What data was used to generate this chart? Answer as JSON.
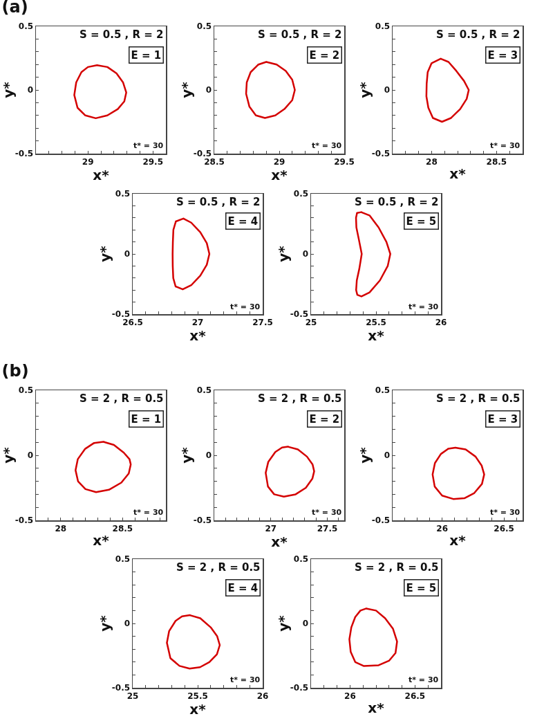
{
  "chart_data": [
    {
      "type": "line",
      "title": "(a)",
      "xlabel": "x*",
      "ylabel": "y*",
      "annotations": [
        "S = 0.5 , R = 2",
        "E = 1",
        "t* = 30"
      ],
      "xlim": [
        28.6,
        29.6
      ],
      "xticks": [
        {
          "value": 28.7,
          "label": null
        },
        {
          "value": 28.8,
          "label": null
        },
        {
          "value": 28.9,
          "label": null
        },
        29,
        {
          "value": 29.1,
          "label": null
        },
        {
          "value": 29.2,
          "label": null
        },
        {
          "value": 29.3,
          "label": null
        },
        {
          "value": 29.4,
          "label": null
        },
        29.5
      ],
      "ylim": [
        -0.5,
        0.5
      ],
      "yticks": [
        -0.5,
        {
          "value": -0.4,
          "label": null
        },
        {
          "value": -0.3,
          "label": null
        },
        {
          "value": -0.2,
          "label": null
        },
        {
          "value": -0.1,
          "label": null
        },
        0,
        {
          "value": 0.1,
          "label": null
        },
        {
          "value": 0.2,
          "label": null
        },
        {
          "value": 0.3,
          "label": null
        },
        {
          "value": 0.4,
          "label": null
        },
        0.5
      ],
      "series": [
        {
          "color": "#d40000",
          "x": [
            29.07,
            29.15,
            29.22,
            29.27,
            29.295,
            29.28,
            29.23,
            29.15,
            29.06,
            28.98,
            28.92,
            28.895,
            28.91,
            28.95,
            29.0
          ],
          "values": [
            0.194,
            0.18,
            0.13,
            0.06,
            -0.02,
            -0.09,
            -0.15,
            -0.2,
            -0.222,
            -0.2,
            -0.14,
            -0.04,
            0.06,
            0.14,
            0.18
          ]
        }
      ]
    },
    {
      "type": "line",
      "xlabel": "x*",
      "ylabel": "y*",
      "annotations": [
        "S = 0.5 , R = 2",
        "E = 2",
        "t* = 30"
      ],
      "xlim": [
        28.5,
        29.5
      ],
      "xticks": [
        28.5,
        {
          "value": 28.6,
          "label": null
        },
        {
          "value": 28.7,
          "label": null
        },
        {
          "value": 28.8,
          "label": null
        },
        {
          "value": 28.9,
          "label": null
        },
        29,
        {
          "value": 29.1,
          "label": null
        },
        {
          "value": 29.2,
          "label": null
        },
        {
          "value": 29.3,
          "label": null
        },
        {
          "value": 29.4,
          "label": null
        },
        29.5
      ],
      "ylim": [
        -0.5,
        0.5
      ],
      "yticks": [
        -0.5,
        {
          "value": -0.4,
          "label": null
        },
        {
          "value": -0.3,
          "label": null
        },
        {
          "value": -0.2,
          "label": null
        },
        {
          "value": -0.1,
          "label": null
        },
        0,
        {
          "value": 0.1,
          "label": null
        },
        {
          "value": 0.2,
          "label": null
        },
        {
          "value": 0.3,
          "label": null
        },
        {
          "value": 0.4,
          "label": null
        },
        0.5
      ],
      "series": [
        {
          "color": "#d40000",
          "x": [
            28.9,
            28.98,
            29.05,
            29.1,
            29.12,
            29.1,
            29.04,
            28.97,
            28.89,
            28.82,
            28.77,
            28.745,
            28.75,
            28.78,
            28.84
          ],
          "values": [
            0.22,
            0.2,
            0.15,
            0.08,
            0,
            -0.08,
            -0.15,
            -0.2,
            -0.22,
            -0.2,
            -0.13,
            -0.03,
            0.06,
            0.14,
            0.2
          ]
        }
      ]
    },
    {
      "type": "line",
      "xlabel": "x*",
      "ylabel": "y*",
      "annotations": [
        "S = 0.5 , R = 2",
        "E = 3",
        "t* = 30"
      ],
      "xlim": [
        27.7,
        28.7
      ],
      "xticks": [
        {
          "value": 27.8,
          "label": null
        },
        {
          "value": 27.9,
          "label": null
        },
        28,
        {
          "value": 28.1,
          "label": null
        },
        {
          "value": 28.2,
          "label": null
        },
        {
          "value": 28.3,
          "label": null
        },
        {
          "value": 28.4,
          "label": null
        },
        28.5,
        {
          "value": 28.6,
          "label": null
        }
      ],
      "ylim": [
        -0.5,
        0.5
      ],
      "yticks": [
        -0.5,
        {
          "value": -0.4,
          "label": null
        },
        {
          "value": -0.3,
          "label": null
        },
        {
          "value": -0.2,
          "label": null
        },
        {
          "value": -0.1,
          "label": null
        },
        0,
        {
          "value": 0.1,
          "label": null
        },
        {
          "value": 0.2,
          "label": null
        },
        {
          "value": 0.3,
          "label": null
        },
        {
          "value": 0.4,
          "label": null
        },
        0.5
      ],
      "series": [
        {
          "color": "#d40000",
          "x": [
            28.07,
            28.13,
            28.19,
            28.25,
            28.286,
            28.27,
            28.22,
            28.15,
            28.08,
            28.01,
            27.975,
            27.96,
            27.962,
            27.97,
            28.0
          ],
          "values": [
            0.245,
            0.22,
            0.15,
            0.07,
            0,
            -0.07,
            -0.15,
            -0.22,
            -0.25,
            -0.22,
            -0.14,
            -0.05,
            0.05,
            0.14,
            0.21
          ]
        }
      ]
    },
    {
      "type": "line",
      "xlabel": "x*",
      "ylabel": "y*",
      "annotations": [
        "S = 0.5 , R = 2",
        "E = 4",
        "t* = 30"
      ],
      "xlim": [
        26.5,
        27.5
      ],
      "xticks": [
        26.5,
        {
          "value": 26.6,
          "label": null
        },
        {
          "value": 26.7,
          "label": null
        },
        {
          "value": 26.8,
          "label": null
        },
        {
          "value": 26.9,
          "label": null
        },
        27,
        {
          "value": 27.1,
          "label": null
        },
        {
          "value": 27.2,
          "label": null
        },
        {
          "value": 27.3,
          "label": null
        },
        {
          "value": 27.4,
          "label": null
        },
        27.5
      ],
      "ylim": [
        -0.5,
        0.5
      ],
      "yticks": [
        -0.5,
        {
          "value": -0.4,
          "label": null
        },
        {
          "value": -0.3,
          "label": null
        },
        {
          "value": -0.2,
          "label": null
        },
        {
          "value": -0.1,
          "label": null
        },
        0,
        {
          "value": 0.1,
          "label": null
        },
        {
          "value": 0.2,
          "label": null
        },
        {
          "value": 0.3,
          "label": null
        },
        {
          "value": 0.4,
          "label": null
        },
        0.5
      ],
      "series": [
        {
          "color": "#d40000",
          "x": [
            26.89,
            26.95,
            27.02,
            27.07,
            27.09,
            27.07,
            27.02,
            26.95,
            26.885,
            26.83,
            26.812,
            26.808,
            26.807,
            26.809,
            26.813,
            26.832
          ],
          "values": [
            0.294,
            0.26,
            0.18,
            0.09,
            0,
            -0.09,
            -0.18,
            -0.26,
            -0.294,
            -0.27,
            -0.2,
            -0.1,
            0,
            0.1,
            0.2,
            0.27
          ]
        }
      ]
    },
    {
      "type": "line",
      "xlabel": "x*",
      "ylabel": "y*",
      "annotations": [
        "S = 0.5 , R = 2",
        "E = 5",
        "t* = 30"
      ],
      "xlim": [
        25,
        26
      ],
      "xticks": [
        25,
        {
          "value": 25.1,
          "label": null
        },
        {
          "value": 25.2,
          "label": null
        },
        {
          "value": 25.3,
          "label": null
        },
        {
          "value": 25.4,
          "label": null
        },
        25.5,
        {
          "value": 25.6,
          "label": null
        },
        {
          "value": 25.7,
          "label": null
        },
        {
          "value": 25.8,
          "label": null
        },
        {
          "value": 25.9,
          "label": null
        },
        26
      ],
      "ylim": [
        -0.5,
        0.5
      ],
      "yticks": [
        -0.5,
        {
          "value": -0.4,
          "label": null
        },
        {
          "value": -0.3,
          "label": null
        },
        {
          "value": -0.2,
          "label": null
        },
        {
          "value": -0.1,
          "label": null
        },
        0,
        {
          "value": 0.1,
          "label": null
        },
        {
          "value": 0.2,
          "label": null
        },
        {
          "value": 0.3,
          "label": null
        },
        {
          "value": 0.4,
          "label": null
        },
        0.5
      ],
      "series": [
        {
          "color": "#d40000",
          "x": [
            25.386,
            25.45,
            25.52,
            25.58,
            25.61,
            25.59,
            25.53,
            25.45,
            25.388,
            25.356,
            25.347,
            25.352,
            25.372,
            25.39,
            25.368,
            25.349,
            25.346,
            25.354
          ],
          "values": [
            0.347,
            0.32,
            0.22,
            0.1,
            0,
            -0.1,
            -0.22,
            -0.32,
            -0.353,
            -0.34,
            -0.3,
            -0.22,
            -0.12,
            0,
            0.12,
            0.22,
            0.3,
            0.34
          ]
        }
      ]
    },
    {
      "type": "line",
      "title": "(b)",
      "xlabel": "x*",
      "ylabel": "y*",
      "annotations": [
        "S = 2 , R = 0.5",
        "E = 1",
        "t* = 30"
      ],
      "xlim": [
        27.8,
        28.85
      ],
      "xticks": [
        {
          "value": 27.9,
          "label": null
        },
        28,
        {
          "value": 28.1,
          "label": null
        },
        {
          "value": 28.2,
          "label": null
        },
        {
          "value": 28.3,
          "label": null
        },
        {
          "value": 28.4,
          "label": null
        },
        28.5,
        {
          "value": 28.6,
          "label": null
        },
        {
          "value": 28.7,
          "label": null
        },
        {
          "value": 28.8,
          "label": null
        }
      ],
      "ylim": [
        -0.5,
        0.5
      ],
      "yticks": [
        -0.5,
        {
          "value": -0.4,
          "label": null
        },
        {
          "value": -0.3,
          "label": null
        },
        {
          "value": -0.2,
          "label": null
        },
        {
          "value": -0.1,
          "label": null
        },
        0,
        {
          "value": 0.1,
          "label": null
        },
        {
          "value": 0.2,
          "label": null
        },
        {
          "value": 0.3,
          "label": null
        },
        {
          "value": 0.4,
          "label": null
        },
        0.5
      ],
      "series": [
        {
          "color": "#d40000",
          "x": [
            28.345,
            28.43,
            28.51,
            28.556,
            28.566,
            28.55,
            28.49,
            28.39,
            28.286,
            28.2,
            28.14,
            28.12,
            28.138,
            28.198,
            28.27
          ],
          "values": [
            0.104,
            0.08,
            0.02,
            -0.03,
            -0.07,
            -0.14,
            -0.21,
            -0.265,
            -0.283,
            -0.26,
            -0.2,
            -0.115,
            -0.03,
            0.05,
            0.095
          ]
        }
      ]
    },
    {
      "type": "line",
      "xlabel": "x*",
      "ylabel": "y*",
      "annotations": [
        "S = 2 , R = 0.5",
        "E = 2",
        "t* = 30"
      ],
      "xlim": [
        26.5,
        27.65
      ],
      "xticks": [
        {
          "value": 26.6,
          "label": null
        },
        {
          "value": 26.7,
          "label": null
        },
        {
          "value": 26.8,
          "label": null
        },
        {
          "value": 26.9,
          "label": null
        },
        27,
        {
          "value": 27.1,
          "label": null
        },
        {
          "value": 27.2,
          "label": null
        },
        {
          "value": 27.3,
          "label": null
        },
        {
          "value": 27.4,
          "label": null
        },
        27.5,
        {
          "value": 27.6,
          "label": null
        }
      ],
      "ylim": [
        -0.5,
        0.5
      ],
      "yticks": [
        -0.5,
        {
          "value": -0.4,
          "label": null
        },
        {
          "value": -0.3,
          "label": null
        },
        {
          "value": -0.2,
          "label": null
        },
        {
          "value": -0.1,
          "label": null
        },
        0,
        {
          "value": 0.1,
          "label": null
        },
        {
          "value": 0.2,
          "label": null
        },
        {
          "value": 0.3,
          "label": null
        },
        {
          "value": 0.4,
          "label": null
        },
        0.5
      ],
      "series": [
        {
          "color": "#d40000",
          "x": [
            27.152,
            27.24,
            27.32,
            27.37,
            27.384,
            27.368,
            27.31,
            27.22,
            27.116,
            27.03,
            26.975,
            26.955,
            26.978,
            27.04,
            27.1
          ],
          "values": [
            0.066,
            0.045,
            -0.01,
            -0.07,
            -0.123,
            -0.18,
            -0.25,
            -0.3,
            -0.318,
            -0.3,
            -0.24,
            -0.135,
            -0.05,
            0.025,
            0.06
          ]
        }
      ]
    },
    {
      "type": "line",
      "xlabel": "x*",
      "ylabel": "y*",
      "annotations": [
        "S = 2 , R = 0.5",
        "E = 3",
        "t* = 30"
      ],
      "xlim": [
        25.6,
        26.65
      ],
      "xticks": [
        {
          "value": 25.7,
          "label": null
        },
        {
          "value": 25.8,
          "label": null
        },
        {
          "value": 25.9,
          "label": null
        },
        26,
        {
          "value": 26.1,
          "label": null
        },
        {
          "value": 26.2,
          "label": null
        },
        {
          "value": 26.3,
          "label": null
        },
        {
          "value": 26.4,
          "label": null
        },
        26.5,
        {
          "value": 26.6,
          "label": null
        }
      ],
      "ylim": [
        -0.5,
        0.5
      ],
      "yticks": [
        -0.5,
        {
          "value": -0.4,
          "label": null
        },
        {
          "value": -0.3,
          "label": null
        },
        {
          "value": -0.2,
          "label": null
        },
        {
          "value": -0.1,
          "label": null
        },
        0,
        {
          "value": 0.1,
          "label": null
        },
        {
          "value": 0.2,
          "label": null
        },
        {
          "value": 0.3,
          "label": null
        },
        {
          "value": 0.4,
          "label": null
        },
        0.5
      ],
      "series": [
        {
          "color": "#d40000",
          "x": [
            26.107,
            26.19,
            26.27,
            26.32,
            26.34,
            26.322,
            26.26,
            26.18,
            26.09,
            26.0,
            25.94,
            25.923,
            25.942,
            25.99,
            26.05
          ],
          "values": [
            0.059,
            0.045,
            -0.01,
            -0.08,
            -0.147,
            -0.22,
            -0.29,
            -0.33,
            -0.336,
            -0.31,
            -0.24,
            -0.147,
            -0.06,
            0.01,
            0.05
          ]
        }
      ]
    },
    {
      "type": "line",
      "xlabel": "x*",
      "ylabel": "y*",
      "annotations": [
        "S = 2 , R = 0.5",
        "E = 4",
        "t* = 30"
      ],
      "xlim": [
        25,
        26
      ],
      "xticks": [
        25,
        {
          "value": 25.1,
          "label": null
        },
        {
          "value": 25.2,
          "label": null
        },
        {
          "value": 25.3,
          "label": null
        },
        {
          "value": 25.4,
          "label": null
        },
        25.5,
        {
          "value": 25.6,
          "label": null
        },
        {
          "value": 25.7,
          "label": null
        },
        {
          "value": 25.8,
          "label": null
        },
        {
          "value": 25.9,
          "label": null
        },
        26
      ],
      "ylim": [
        -0.5,
        0.5
      ],
      "yticks": [
        -0.5,
        {
          "value": -0.4,
          "label": null
        },
        {
          "value": -0.3,
          "label": null
        },
        {
          "value": -0.2,
          "label": null
        },
        {
          "value": -0.1,
          "label": null
        },
        0,
        {
          "value": 0.1,
          "label": null
        },
        {
          "value": 0.2,
          "label": null
        },
        {
          "value": 0.3,
          "label": null
        },
        {
          "value": 0.4,
          "label": null
        },
        0.5
      ],
      "series": [
        {
          "color": "#d40000",
          "x": [
            25.44,
            25.52,
            25.6,
            25.65,
            25.67,
            25.648,
            25.59,
            25.518,
            25.438,
            25.36,
            25.29,
            25.263,
            25.28,
            25.33,
            25.38
          ],
          "values": [
            0.064,
            0.04,
            -0.03,
            -0.1,
            -0.168,
            -0.24,
            -0.3,
            -0.34,
            -0.351,
            -0.33,
            -0.27,
            -0.15,
            -0.06,
            0.02,
            0.055
          ]
        }
      ]
    },
    {
      "type": "line",
      "xlabel": "x*",
      "ylabel": "y*",
      "annotations": [
        "S = 2 , R = 0.5",
        "E = 5",
        "t* = 30"
      ],
      "xlim": [
        25.7,
        26.7
      ],
      "xticks": [
        {
          "value": 25.8,
          "label": null
        },
        {
          "value": 25.9,
          "label": null
        },
        26,
        {
          "value": 26.1,
          "label": null
        },
        {
          "value": 26.2,
          "label": null
        },
        {
          "value": 26.3,
          "label": null
        },
        {
          "value": 26.4,
          "label": null
        },
        26.5,
        {
          "value": 26.6,
          "label": null
        }
      ],
      "ylim": [
        -0.5,
        0.5
      ],
      "yticks": [
        -0.5,
        {
          "value": -0.4,
          "label": null
        },
        {
          "value": -0.3,
          "label": null
        },
        {
          "value": -0.2,
          "label": null
        },
        {
          "value": -0.1,
          "label": null
        },
        0,
        {
          "value": 0.1,
          "label": null
        },
        {
          "value": 0.2,
          "label": null
        },
        {
          "value": 0.3,
          "label": null
        },
        {
          "value": 0.4,
          "label": null
        },
        0.5
      ],
      "series": [
        {
          "color": "#d40000",
          "x": [
            26.125,
            26.2,
            26.27,
            26.33,
            26.362,
            26.35,
            26.3,
            26.22,
            26.107,
            26.04,
            26.005,
            25.995,
            26.01,
            26.04,
            26.08
          ],
          "values": [
            0.116,
            0.1,
            0.04,
            -0.04,
            -0.14,
            -0.23,
            -0.29,
            -0.325,
            -0.331,
            -0.3,
            -0.22,
            -0.123,
            -0.03,
            0.05,
            0.1
          ]
        }
      ]
    }
  ]
}
